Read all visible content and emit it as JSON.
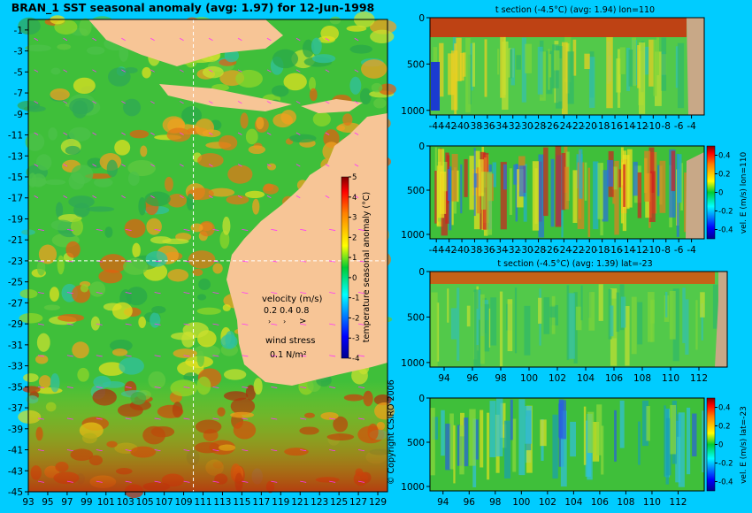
{
  "main_title": "BRAN_1 SST seasonal anomaly (avg: 1.97) for 12-Jun-1998",
  "colors": {
    "background": "#00ccff",
    "land": "#f7c596",
    "land_section": "#c8a887",
    "wind_arrow": "#ff33ff",
    "axis": "#000000"
  },
  "copyright": "© Copyright CSIRO 2006",
  "velocity_legend": {
    "title": "velocity (m/s)",
    "scale_values": "0.2 0.4 0.8",
    "wind_title": "wind stress",
    "wind_value": "0.1 N/m²"
  },
  "chart_data": [
    {
      "type": "heatmap",
      "id": "sst_map",
      "title": "BRAN_1 SST seasonal anomaly (avg: 1.97) for 12-Jun-1998",
      "x_ticks": [
        "93",
        "95",
        "97",
        "99",
        "101",
        "103",
        "105",
        "107",
        "109",
        "111",
        "113",
        "115",
        "117",
        "119",
        "121",
        "123",
        "125",
        "127",
        "129"
      ],
      "y_ticks": [
        "-1",
        "-3",
        "-5",
        "-7",
        "-9",
        "-11",
        "-13",
        "-15",
        "-17",
        "-19",
        "-21",
        "-23",
        "-25",
        "-27",
        "-29",
        "-31",
        "-33",
        "-35",
        "-37",
        "-39",
        "-41",
        "-43",
        "-45"
      ],
      "xlim": [
        93,
        130
      ],
      "ylim": [
        -45,
        0
      ],
      "crosshair": {
        "lon": 110,
        "lat": -23
      },
      "colorbar": {
        "label": "temperature seasonal anomaly (°C)",
        "ticks": [
          "5",
          "4",
          "3",
          "2",
          "1",
          "0",
          "-1",
          "-2",
          "-3",
          "-4"
        ],
        "range": [
          -4,
          5
        ]
      }
    },
    {
      "type": "heatmap",
      "id": "t_section_lon",
      "title": "t section (-4.5°C) (avg: 1.94) lon=110",
      "x_ticks": [
        "-44",
        "-42",
        "-40",
        "-38",
        "-36",
        "-34",
        "-32",
        "-30",
        "-28",
        "-26",
        "-24",
        "-22",
        "-20",
        "-18",
        "-16",
        "-14",
        "-12",
        "-10",
        "-8",
        "-6",
        "-4"
      ],
      "y_ticks": [
        "0",
        "500",
        "1000"
      ],
      "xlim": [
        -45,
        -2
      ],
      "ylim": [
        1050,
        0
      ]
    },
    {
      "type": "heatmap",
      "id": "vel_section_lon",
      "title": "",
      "x_ticks": [
        "-44",
        "-42",
        "-40",
        "-38",
        "-36",
        "-34",
        "-32",
        "-30",
        "-28",
        "-26",
        "-24",
        "-22",
        "-20",
        "-18",
        "-16",
        "-14",
        "-12",
        "-10",
        "-8",
        "-6",
        "-4"
      ],
      "y_ticks": [
        "0",
        "500",
        "1000"
      ],
      "xlim": [
        -45,
        -2
      ],
      "ylim": [
        1050,
        0
      ],
      "colorbar": {
        "label": "vel. E (m/s) lon=110",
        "ticks": [
          "0.4",
          "0.2",
          "0",
          "-0.2",
          "-0.4"
        ],
        "range": [
          -0.5,
          0.5
        ]
      }
    },
    {
      "type": "heatmap",
      "id": "t_section_lat",
      "title": "t section (-4.5°C) (avg: 1.39) lat=-23",
      "x_ticks": [
        "94",
        "96",
        "98",
        "100",
        "102",
        "104",
        "106",
        "108",
        "110",
        "112"
      ],
      "y_ticks": [
        "0",
        "500",
        "1000"
      ],
      "xlim": [
        93,
        114
      ],
      "ylim": [
        1050,
        0
      ]
    },
    {
      "type": "heatmap",
      "id": "vel_section_lat",
      "title": "",
      "x_ticks": [
        "94",
        "96",
        "98",
        "100",
        "102",
        "104",
        "106",
        "108",
        "110",
        "112"
      ],
      "y_ticks": [
        "0",
        "500",
        "1000"
      ],
      "xlim": [
        93,
        114
      ],
      "ylim": [
        1050,
        0
      ],
      "colorbar": {
        "label": "vel. E (m/s) lat=-23",
        "ticks": [
          "0.4",
          "0.2",
          "0",
          "-0.2",
          "-0.4"
        ],
        "range": [
          -0.5,
          0.5
        ]
      }
    }
  ]
}
